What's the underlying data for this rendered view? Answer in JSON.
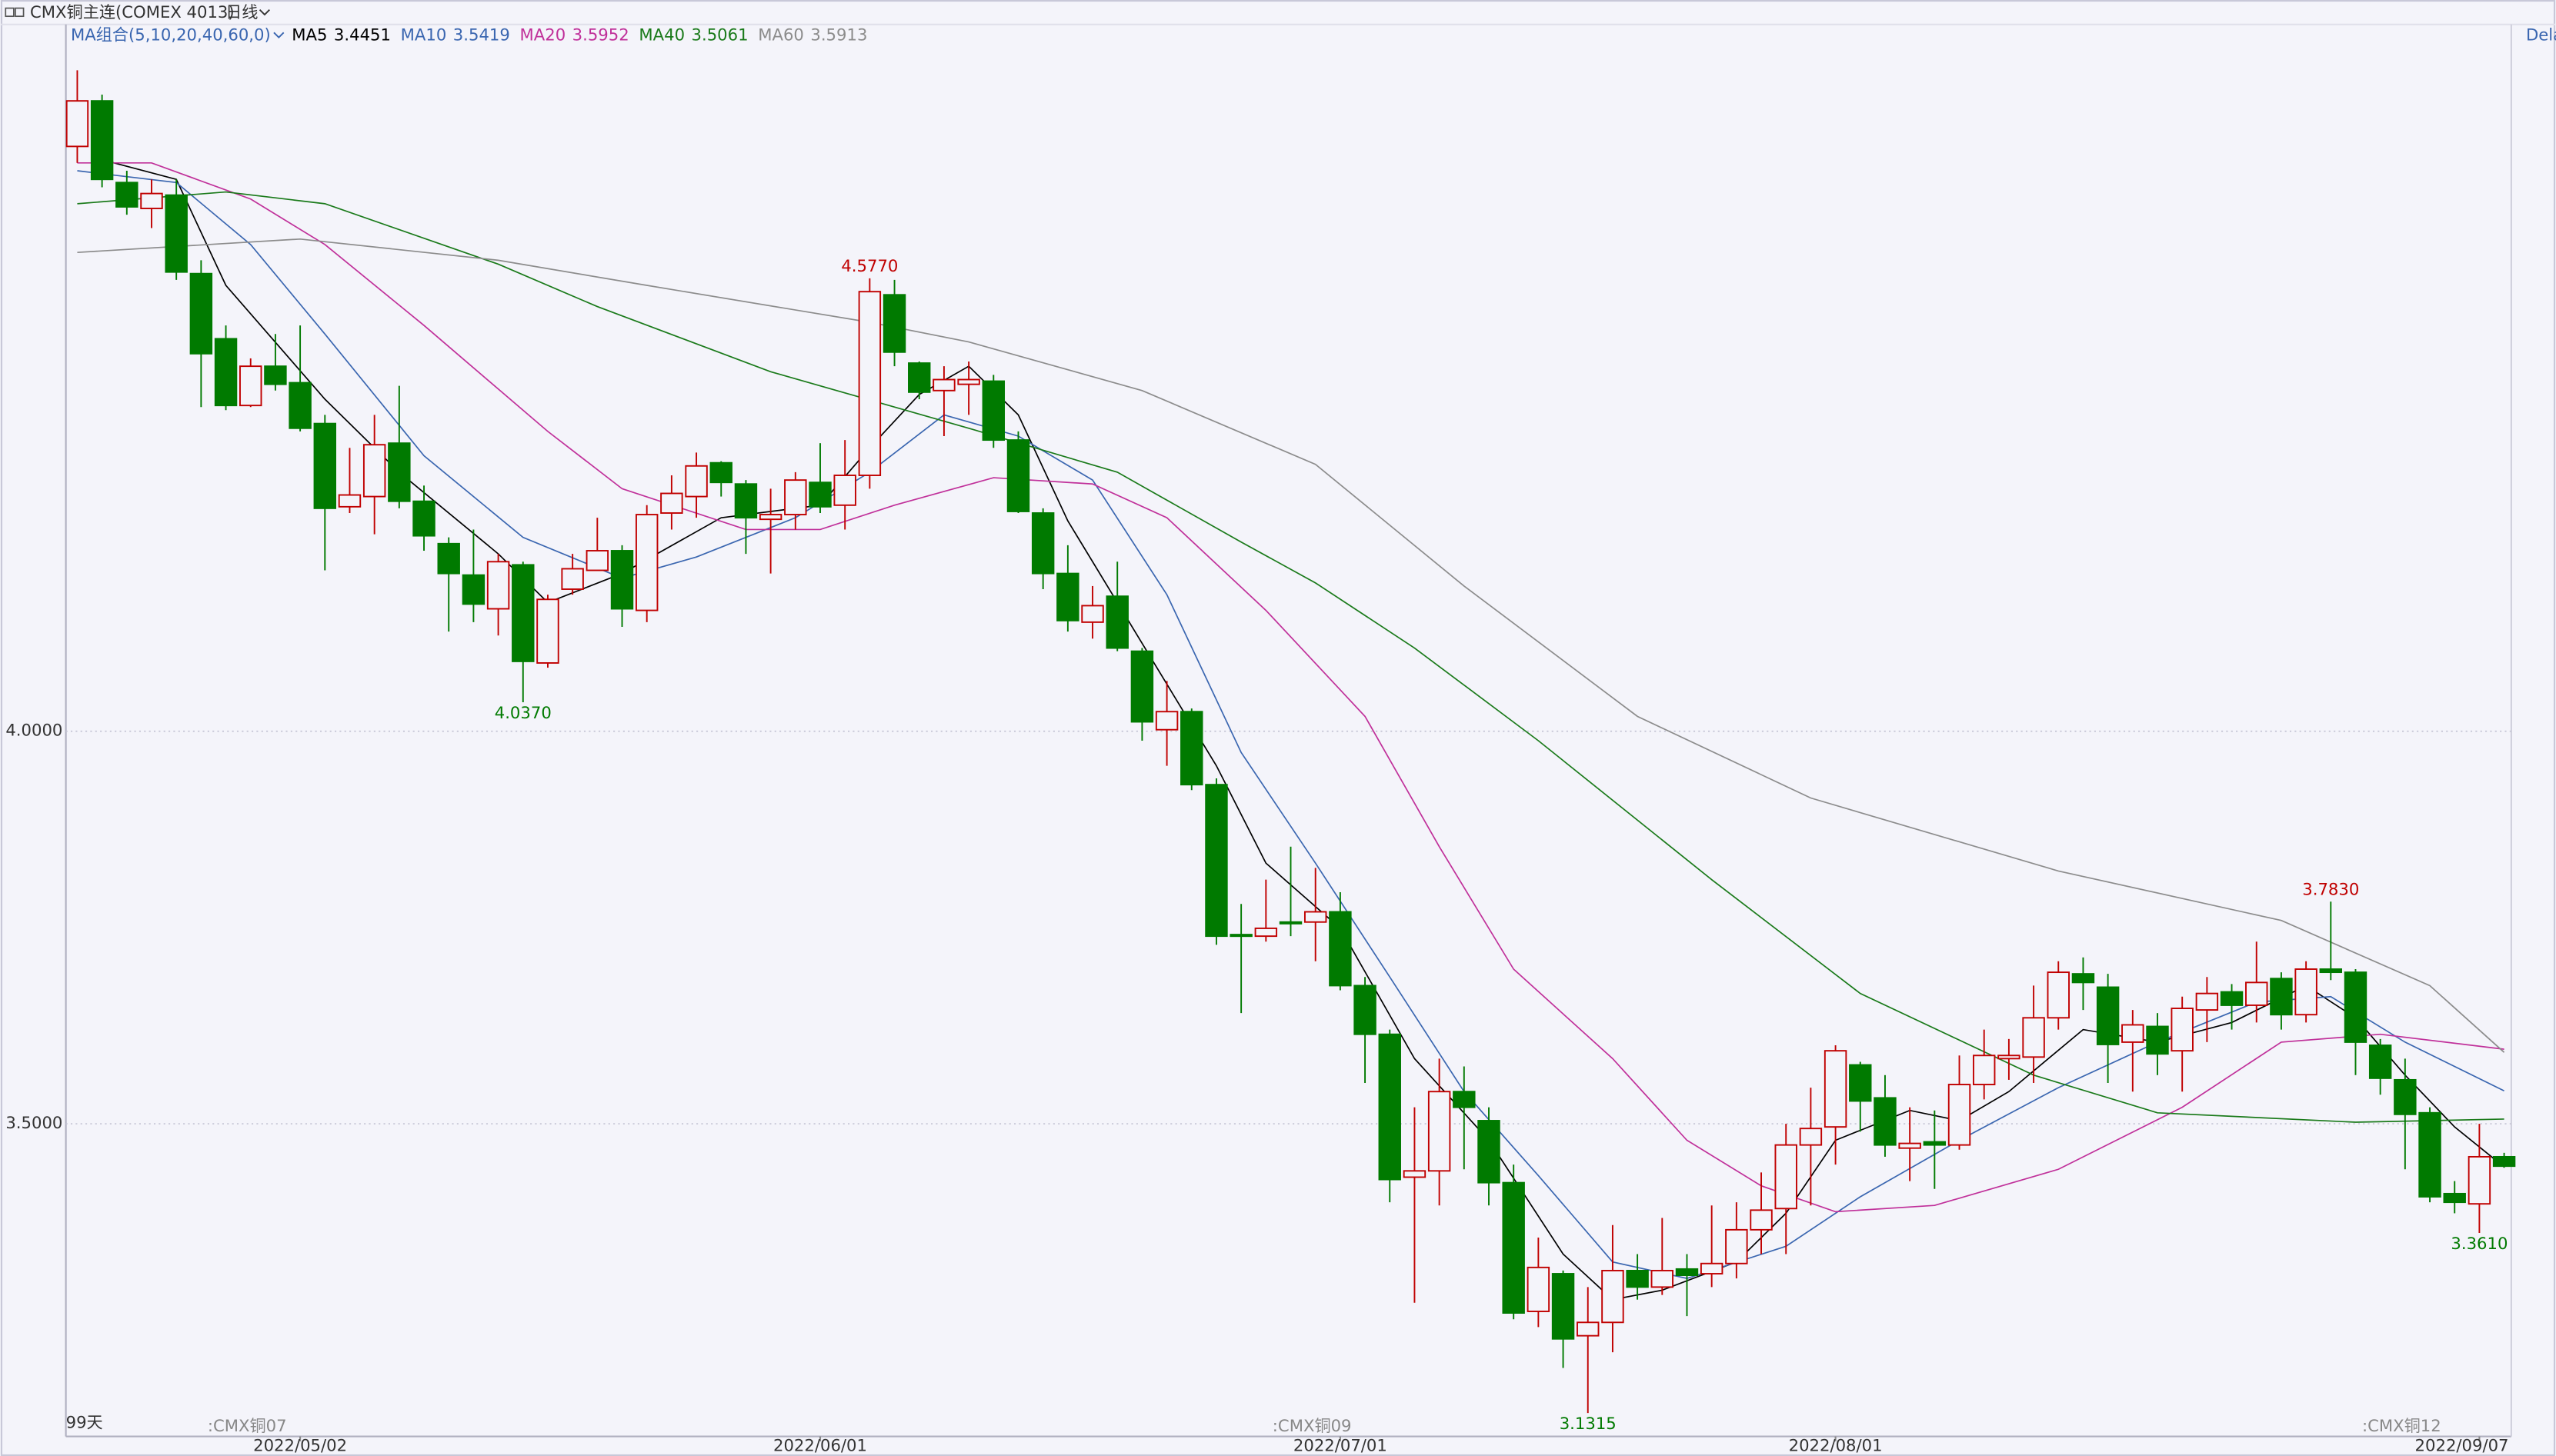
{
  "chart_data": {
    "type": "candlestick",
    "title": "CMX铜主连(COMEX 4013)",
    "period": "日线",
    "ma_group_label": "MA组合(5,10,20,40,60,0)",
    "day_count_label": "99天",
    "right_label": "Dela",
    "up_color": "#c00000",
    "down_color": "#007a00",
    "ylim": [
      3.1017,
      4.9004
    ],
    "yticks": [
      {
        "value": 3.5,
        "label": "3.5000"
      },
      {
        "value": 4,
        "label": "4.0000"
      }
    ],
    "grid": true,
    "categories": [
      null,
      null,
      null,
      null,
      null,
      null,
      null,
      null,
      null,
      "2022/05/02",
      null,
      null,
      null,
      null,
      null,
      null,
      null,
      null,
      null,
      null,
      null,
      null,
      null,
      null,
      null,
      null,
      null,
      null,
      null,
      null,
      "2022/06/01",
      null,
      null,
      null,
      null,
      null,
      null,
      null,
      null,
      null,
      null,
      null,
      null,
      null,
      null,
      null,
      null,
      null,
      null,
      null,
      null,
      "2022/07/01",
      null,
      null,
      null,
      null,
      null,
      null,
      null,
      null,
      null,
      null,
      null,
      null,
      null,
      null,
      null,
      null,
      null,
      null,
      null,
      "2022/08/01",
      null,
      null,
      null,
      null,
      null,
      null,
      null,
      null,
      null,
      null,
      null,
      null,
      null,
      null,
      null,
      null,
      null,
      null,
      null,
      null,
      null,
      null,
      null,
      null,
      null,
      "2022/09/07",
      null
    ],
    "contracts": [
      null,
      null,
      null,
      null,
      null,
      ":CMX铜07",
      null,
      null,
      null,
      null,
      null,
      null,
      null,
      null,
      null,
      null,
      null,
      null,
      null,
      null,
      null,
      null,
      null,
      null,
      null,
      null,
      null,
      null,
      null,
      null,
      null,
      null,
      null,
      null,
      null,
      null,
      null,
      null,
      null,
      null,
      null,
      null,
      null,
      null,
      null,
      null,
      null,
      null,
      ":CMX铜09",
      null,
      null,
      null,
      null,
      null,
      null,
      null,
      null,
      null,
      null,
      null,
      null,
      null,
      null,
      null,
      null,
      null,
      null,
      null,
      null,
      null,
      null,
      null,
      null,
      null,
      null,
      null,
      null,
      null,
      null,
      null,
      null,
      null,
      null,
      null,
      null,
      null,
      null,
      null,
      null,
      null,
      null,
      null,
      ":CMX铜12",
      null,
      null,
      null,
      null,
      null,
      null
    ],
    "open": [
      4.745,
      4.803,
      4.699,
      4.666,
      4.683,
      4.583,
      4.5,
      4.415,
      4.465,
      4.444,
      4.392,
      4.286,
      4.299,
      4.367,
      4.293,
      4.239,
      4.199,
      4.156,
      4.212,
      4.087,
      4.181,
      4.205,
      4.23,
      4.154,
      4.278,
      4.299,
      4.342,
      4.315,
      4.27,
      4.276,
      4.317,
      4.288,
      4.326,
      4.556,
      4.469,
      4.434,
      4.442,
      4.446,
      4.371,
      4.278,
      4.201,
      4.139,
      4.172,
      4.102,
      4.002,
      4.025,
      3.932,
      3.741,
      3.739,
      3.757,
      3.757,
      3.77,
      3.676,
      3.614,
      3.432,
      3.44,
      3.541,
      3.504,
      3.425,
      3.261,
      3.309,
      3.23,
      3.247,
      3.313,
      3.292,
      3.315,
      3.309,
      3.322,
      3.365,
      3.392,
      3.473,
      3.496,
      3.575,
      3.533,
      3.469,
      3.477,
      3.473,
      3.55,
      3.583,
      3.585,
      3.635,
      3.691,
      3.674,
      3.604,
      3.624,
      3.593,
      3.645,
      3.668,
      3.651,
      3.685,
      3.639,
      3.697,
      3.693,
      3.6,
      3.556,
      3.514,
      3.411,
      3.398,
      3.458
    ],
    "high": [
      4.842,
      4.811,
      4.714,
      4.703,
      4.703,
      4.6,
      4.517,
      4.475,
      4.506,
      4.517,
      4.403,
      4.361,
      4.403,
      4.44,
      4.313,
      4.247,
      4.257,
      4.226,
      4.216,
      4.174,
      4.226,
      4.272,
      4.237,
      4.288,
      4.326,
      4.355,
      4.344,
      4.32,
      4.309,
      4.33,
      4.367,
      4.371,
      4.577,
      4.575,
      4.471,
      4.465,
      4.471,
      4.454,
      4.382,
      4.284,
      4.237,
      4.185,
      4.216,
      4.106,
      4.064,
      4.029,
      3.94,
      3.78,
      3.811,
      3.853,
      3.826,
      3.795,
      3.687,
      3.62,
      3.521,
      3.583,
      3.573,
      3.521,
      3.448,
      3.355,
      3.313,
      3.292,
      3.371,
      3.334,
      3.38,
      3.334,
      3.396,
      3.4,
      3.438,
      3.5,
      3.546,
      3.6,
      3.579,
      3.562,
      3.521,
      3.517,
      3.587,
      3.62,
      3.608,
      3.676,
      3.707,
      3.712,
      3.691,
      3.645,
      3.641,
      3.662,
      3.687,
      3.678,
      3.732,
      3.693,
      3.707,
      3.783,
      3.697,
      3.608,
      3.583,
      3.521,
      3.427,
      3.5,
      3.463
    ],
    "low": [
      4.724,
      4.693,
      4.658,
      4.641,
      4.575,
      4.413,
      4.409,
      4.413,
      4.434,
      4.382,
      4.205,
      4.278,
      4.251,
      4.284,
      4.23,
      4.127,
      4.139,
      4.122,
      4.037,
      4.081,
      4.174,
      4.205,
      4.133,
      4.139,
      4.257,
      4.272,
      4.299,
      4.226,
      4.201,
      4.257,
      4.278,
      4.257,
      4.309,
      4.465,
      4.423,
      4.376,
      4.403,
      4.361,
      4.278,
      4.181,
      4.127,
      4.118,
      4.102,
      3.988,
      3.956,
      3.925,
      3.728,
      3.641,
      3.732,
      3.739,
      3.707,
      3.67,
      3.552,
      3.4,
      3.272,
      3.396,
      3.442,
      3.396,
      3.251,
      3.241,
      3.189,
      3.1315,
      3.209,
      3.276,
      3.282,
      3.255,
      3.292,
      3.303,
      3.334,
      3.334,
      3.396,
      3.448,
      3.49,
      3.458,
      3.427,
      3.417,
      3.467,
      3.531,
      3.556,
      3.552,
      3.62,
      3.645,
      3.552,
      3.541,
      3.562,
      3.541,
      3.604,
      3.62,
      3.629,
      3.62,
      3.629,
      3.683,
      3.562,
      3.537,
      3.442,
      3.4,
      3.386,
      3.361,
      3.444
    ],
    "close": [
      4.803,
      4.703,
      4.668,
      4.685,
      4.585,
      4.481,
      4.415,
      4.465,
      4.442,
      4.386,
      4.284,
      4.301,
      4.365,
      4.293,
      4.249,
      4.201,
      4.162,
      4.216,
      4.089,
      4.168,
      4.207,
      4.23,
      4.156,
      4.276,
      4.303,
      4.338,
      4.317,
      4.272,
      4.276,
      4.32,
      4.286,
      4.326,
      4.56,
      4.483,
      4.432,
      4.448,
      4.448,
      4.371,
      4.28,
      4.201,
      4.141,
      4.16,
      4.106,
      4.012,
      4.025,
      3.932,
      3.739,
      3.739,
      3.749,
      3.755,
      3.77,
      3.676,
      3.614,
      3.429,
      3.44,
      3.541,
      3.521,
      3.425,
      3.259,
      3.317,
      3.226,
      3.247,
      3.313,
      3.292,
      3.313,
      3.307,
      3.322,
      3.365,
      3.39,
      3.473,
      3.494,
      3.593,
      3.529,
      3.473,
      3.475,
      3.473,
      3.55,
      3.587,
      3.587,
      3.635,
      3.693,
      3.68,
      3.601,
      3.626,
      3.589,
      3.647,
      3.666,
      3.651,
      3.68,
      3.639,
      3.697,
      3.693,
      3.604,
      3.558,
      3.512,
      3.407,
      3.4,
      3.458,
      3.446
    ],
    "extremes": [
      {
        "candle": 32,
        "kind": "high",
        "label": "4.5770"
      },
      {
        "candle": 18,
        "kind": "low",
        "label": "4.0370"
      },
      {
        "candle": 61,
        "kind": "low",
        "label": "3.1315"
      },
      {
        "candle": 91,
        "kind": "high",
        "label": "3.7830"
      },
      {
        "candle": 97,
        "kind": "low",
        "label": "3.3610"
      }
    ],
    "series": [
      {
        "name": "MA5",
        "color": "#000000",
        "last": 3.4451,
        "x": [
          1,
          4,
          6,
          10,
          13,
          17,
          19,
          22,
          26,
          30,
          32,
          34,
          36,
          38,
          40,
          43,
          46,
          48,
          51,
          54,
          57,
          60,
          62,
          64,
          67,
          69,
          71,
          74,
          76,
          78,
          81,
          84,
          87,
          90,
          92,
          94,
          96,
          98
        ],
        "values": [
          4.728,
          4.703,
          4.568,
          4.423,
          4.33,
          4.226,
          4.164,
          4.201,
          4.272,
          4.288,
          4.361,
          4.429,
          4.465,
          4.403,
          4.268,
          4.112,
          3.956,
          3.832,
          3.749,
          3.583,
          3.479,
          3.334,
          3.276,
          3.288,
          3.324,
          3.386,
          3.479,
          3.517,
          3.504,
          3.541,
          3.62,
          3.604,
          3.629,
          3.676,
          3.635,
          3.562,
          3.496,
          3.445
        ]
      },
      {
        "name": "MA10",
        "color": "#3a66b0",
        "last": 3.5419,
        "x": [
          0,
          4,
          7,
          10,
          14,
          18,
          22,
          25,
          29,
          32,
          35,
          38,
          41,
          44,
          47,
          50,
          53,
          56,
          59,
          62,
          65,
          69,
          72,
          76,
          80,
          84,
          88,
          91,
          94,
          98
        ],
        "values": [
          4.714,
          4.699,
          4.62,
          4.506,
          4.351,
          4.247,
          4.195,
          4.222,
          4.272,
          4.33,
          4.403,
          4.376,
          4.32,
          4.174,
          3.973,
          3.832,
          3.687,
          3.541,
          3.434,
          3.324,
          3.303,
          3.344,
          3.407,
          3.479,
          3.546,
          3.604,
          3.655,
          3.662,
          3.604,
          3.542
        ]
      },
      {
        "name": "MA20",
        "color": "#c0309a",
        "last": 3.5952,
        "x": [
          0,
          3,
          7,
          10,
          14,
          19,
          22,
          27,
          30,
          33,
          37,
          41,
          44,
          48,
          52,
          55,
          58,
          62,
          65,
          68,
          71,
          75,
          80,
          85,
          89,
          93,
          98
        ],
        "values": [
          4.724,
          4.724,
          4.678,
          4.62,
          4.517,
          4.382,
          4.309,
          4.257,
          4.257,
          4.288,
          4.323,
          4.315,
          4.272,
          4.154,
          4.019,
          3.853,
          3.697,
          3.583,
          3.479,
          3.421,
          3.388,
          3.396,
          3.442,
          3.521,
          3.604,
          3.614,
          3.595
        ]
      },
      {
        "name": "MA40",
        "color": "#1a7a1a",
        "last": 3.5061,
        "x": [
          0,
          6,
          10,
          17,
          21,
          28,
          36,
          42,
          47,
          50,
          54,
          59,
          66,
          72,
          79,
          84,
          92,
          98
        ],
        "values": [
          4.672,
          4.687,
          4.672,
          4.595,
          4.541,
          4.458,
          4.386,
          4.33,
          4.241,
          4.189,
          4.106,
          3.988,
          3.811,
          3.666,
          3.562,
          3.514,
          3.502,
          3.506
        ]
      },
      {
        "name": "MA60",
        "color": "#8c8c8c",
        "last": 3.5913,
        "x": [
          0,
          9,
          17,
          23,
          32,
          36,
          43,
          50,
          56,
          63,
          70,
          80,
          89,
          95,
          98
        ],
        "values": [
          4.61,
          4.627,
          4.6,
          4.568,
          4.521,
          4.496,
          4.434,
          4.34,
          4.185,
          4.019,
          3.915,
          3.822,
          3.759,
          3.676,
          3.591
        ]
      }
    ]
  }
}
